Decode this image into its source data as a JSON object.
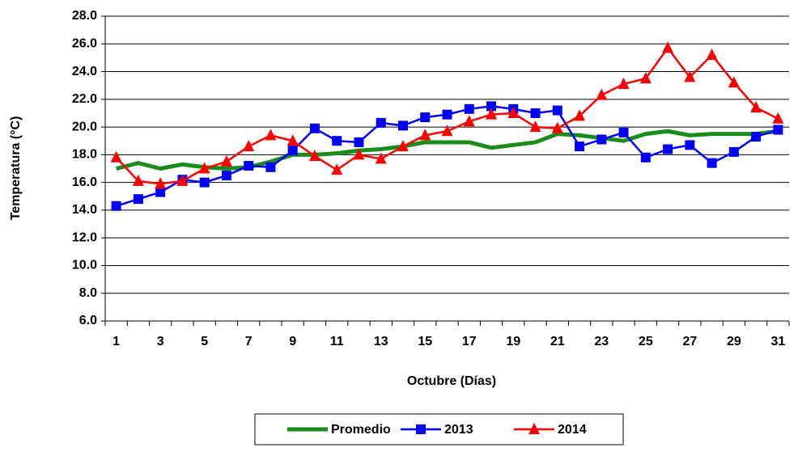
{
  "chart_data": {
    "type": "line",
    "y_label": "Temperatura (°C)",
    "x_label": "Octubre (Días)",
    "categories": [
      "1",
      null,
      "3",
      null,
      "5",
      null,
      "7",
      null,
      "9",
      null,
      "11",
      null,
      "13",
      null,
      "15",
      null,
      "17",
      null,
      "19",
      null,
      "21",
      null,
      "23",
      null,
      "25",
      null,
      "27",
      null,
      "29",
      null,
      "31"
    ],
    "series": [
      {
        "name": "Promedio",
        "color": "#1a8c1a",
        "marker": "none",
        "values": [
          17.0,
          17.4,
          17.0,
          17.3,
          17.1,
          17.0,
          17.1,
          17.5,
          18.0,
          18.0,
          18.1,
          18.3,
          18.4,
          18.6,
          18.9,
          18.9,
          18.9,
          18.5,
          18.7,
          18.9,
          19.5,
          19.4,
          19.2,
          19.0,
          19.5,
          19.7,
          19.4,
          19.5,
          19.5,
          19.5,
          19.7
        ]
      },
      {
        "name": "2013",
        "color": "#0000ff",
        "marker": "square",
        "values": [
          14.3,
          14.8,
          15.3,
          16.2,
          16.0,
          16.5,
          17.2,
          17.1,
          18.3,
          19.9,
          19.0,
          18.9,
          20.3,
          20.1,
          20.7,
          20.9,
          21.3,
          21.5,
          21.3,
          21.0,
          21.2,
          18.6,
          19.1,
          19.6,
          17.8,
          18.4,
          18.7,
          17.4,
          18.2,
          19.3,
          19.8
        ]
      },
      {
        "name": "2014",
        "color": "#ff0000",
        "marker": "triangle",
        "values": [
          17.8,
          16.1,
          15.9,
          16.1,
          17.0,
          17.5,
          18.6,
          19.4,
          19.0,
          17.9,
          16.9,
          18.0,
          17.7,
          18.6,
          19.4,
          19.7,
          20.4,
          20.9,
          21.0,
          20.0,
          19.9,
          20.8,
          22.3,
          23.1,
          23.5,
          25.7,
          23.6,
          25.2,
          23.2,
          21.4,
          20.6
        ]
      }
    ],
    "ylim": [
      6,
      28
    ],
    "yticks": [
      {
        "value": 6,
        "label": "6.0"
      },
      {
        "value": 8,
        "label": "8.0"
      },
      {
        "value": 10,
        "label": "10.0"
      },
      {
        "value": 12,
        "label": "12.0"
      },
      {
        "value": 14,
        "label": "14.0"
      },
      {
        "value": 16,
        "label": "16.0"
      },
      {
        "value": 18,
        "label": "18.0"
      },
      {
        "value": 20,
        "label": "20.0"
      },
      {
        "value": 22,
        "label": "22.0"
      },
      {
        "value": 24,
        "label": "24.0"
      },
      {
        "value": 26,
        "label": "26.0"
      },
      {
        "value": 28,
        "label": "28.0"
      }
    ],
    "grid": true,
    "legend": "bottom"
  }
}
